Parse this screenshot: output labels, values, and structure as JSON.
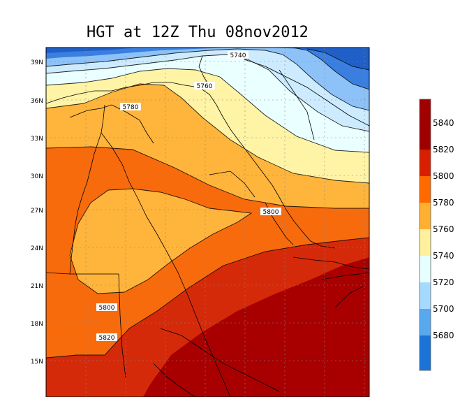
{
  "title": "HGT at 12Z Thu 08nov2012",
  "lat_labels": [
    "39N",
    "36N",
    "33N",
    "30N",
    "27N",
    "24N",
    "21N",
    "18N",
    "15N"
  ],
  "contour_labels": [
    "5740",
    "5760",
    "5780",
    "5800",
    "5800",
    "5820"
  ],
  "colorbar": {
    "labels": [
      "5840",
      "5820",
      "5800",
      "5780",
      "5760",
      "5740",
      "5720",
      "5700",
      "5680"
    ],
    "colors": [
      "#9e0000",
      "#d81f00",
      "#ff6a00",
      "#ffb030",
      "#fff09c",
      "#e6ffff",
      "#a6d9ff",
      "#58a8f0",
      "#1a73d6"
    ],
    "top_color": "#a00000"
  },
  "fill_colors": {
    "c5680": "#1f5fc7",
    "c5700": "#3a7fe0",
    "c5720": "#8cc2f7",
    "c5740": "#cdebff",
    "c5760": "#eaffff",
    "c5780": "#fff3a6",
    "c5800": "#ffb43c",
    "c5820": "#f76b0d",
    "c5840": "#d42a0a",
    "c5860": "#a80000"
  },
  "chart_data": {
    "type": "heatmap",
    "title": "HGT at 12Z Thu 08nov2012",
    "variable": "HGT",
    "valid_time": "12Z Thu 08nov2012",
    "y_tick_labels": [
      "39N",
      "36N",
      "33N",
      "30N",
      "27N",
      "24N",
      "21N",
      "18N",
      "15N"
    ],
    "contour_levels": [
      5680,
      5700,
      5720,
      5740,
      5760,
      5780,
      5800,
      5820,
      5840
    ],
    "labeled_contours": [
      5740,
      5760,
      5780,
      5800,
      5800,
      5820
    ]
  }
}
